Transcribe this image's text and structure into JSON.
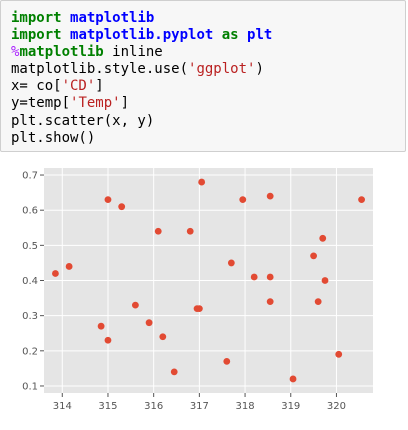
{
  "code_cell": {
    "lines": [
      [
        {
          "t": "import",
          "c": "kw"
        },
        {
          "t": " ",
          "c": ""
        },
        {
          "t": "matplotlib",
          "c": "mod"
        }
      ],
      [
        {
          "t": "import",
          "c": "kw"
        },
        {
          "t": " ",
          "c": ""
        },
        {
          "t": "matplotlib.pyplot",
          "c": "mod"
        },
        {
          "t": " ",
          "c": ""
        },
        {
          "t": "as",
          "c": "kw"
        },
        {
          "t": " ",
          "c": ""
        },
        {
          "t": "plt",
          "c": "mod"
        }
      ],
      [
        {
          "t": "%",
          "c": "magic"
        },
        {
          "t": "matplotlib",
          "c": "magic-name"
        },
        {
          "t": " inline",
          "c": ""
        }
      ],
      [
        {
          "t": "matplotlib.style.use(",
          "c": ""
        },
        {
          "t": "'ggplot'",
          "c": "str"
        },
        {
          "t": ")",
          "c": ""
        }
      ],
      [
        {
          "t": "x= co[",
          "c": ""
        },
        {
          "t": "'CD'",
          "c": "str"
        },
        {
          "t": "]",
          "c": ""
        }
      ],
      [
        {
          "t": "y=temp[",
          "c": ""
        },
        {
          "t": "'Temp'",
          "c": "str"
        },
        {
          "t": "]",
          "c": ""
        }
      ],
      [
        {
          "t": "plt.scatter(x, y)",
          "c": ""
        }
      ],
      [
        {
          "t": "plt.show()",
          "c": ""
        }
      ]
    ]
  },
  "chart_data": {
    "type": "scatter",
    "style": "ggplot",
    "title": "",
    "xlabel": "",
    "ylabel": "",
    "xlim": [
      313.6,
      320.8
    ],
    "ylim": [
      0.08,
      0.72
    ],
    "xticks": [
      314,
      315,
      316,
      317,
      318,
      319,
      320
    ],
    "yticks": [
      0.1,
      0.2,
      0.3,
      0.4,
      0.5,
      0.6,
      0.7
    ],
    "xtick_labels": [
      "314",
      "315",
      "316",
      "317",
      "318",
      "319",
      "320"
    ],
    "ytick_labels": [
      "0.1",
      "0.2",
      "0.3",
      "0.4",
      "0.5",
      "0.6",
      "0.7"
    ],
    "grid": true,
    "legend": "none",
    "colors": {
      "point": "#e24a33",
      "background": "#e5e5e5",
      "grid": "#ffffff",
      "tick_text": "#555555"
    },
    "points": [
      {
        "x": 313.85,
        "y": 0.42
      },
      {
        "x": 314.15,
        "y": 0.44
      },
      {
        "x": 314.85,
        "y": 0.27
      },
      {
        "x": 315.0,
        "y": 0.63
      },
      {
        "x": 315.0,
        "y": 0.23
      },
      {
        "x": 315.3,
        "y": 0.61
      },
      {
        "x": 315.6,
        "y": 0.33
      },
      {
        "x": 315.9,
        "y": 0.28
      },
      {
        "x": 316.1,
        "y": 0.54
      },
      {
        "x": 316.2,
        "y": 0.24
      },
      {
        "x": 316.45,
        "y": 0.14
      },
      {
        "x": 316.8,
        "y": 0.54
      },
      {
        "x": 316.95,
        "y": 0.32
      },
      {
        "x": 317.0,
        "y": 0.32
      },
      {
        "x": 317.05,
        "y": 0.68
      },
      {
        "x": 317.6,
        "y": 0.17
      },
      {
        "x": 317.7,
        "y": 0.45
      },
      {
        "x": 317.95,
        "y": 0.63
      },
      {
        "x": 318.2,
        "y": 0.41
      },
      {
        "x": 318.55,
        "y": 0.64
      },
      {
        "x": 318.55,
        "y": 0.41
      },
      {
        "x": 318.55,
        "y": 0.34
      },
      {
        "x": 319.05,
        "y": 0.12
      },
      {
        "x": 319.5,
        "y": 0.47
      },
      {
        "x": 319.6,
        "y": 0.34
      },
      {
        "x": 319.7,
        "y": 0.52
      },
      {
        "x": 319.75,
        "y": 0.4
      },
      {
        "x": 320.05,
        "y": 0.19
      },
      {
        "x": 320.55,
        "y": 0.63
      }
    ]
  }
}
